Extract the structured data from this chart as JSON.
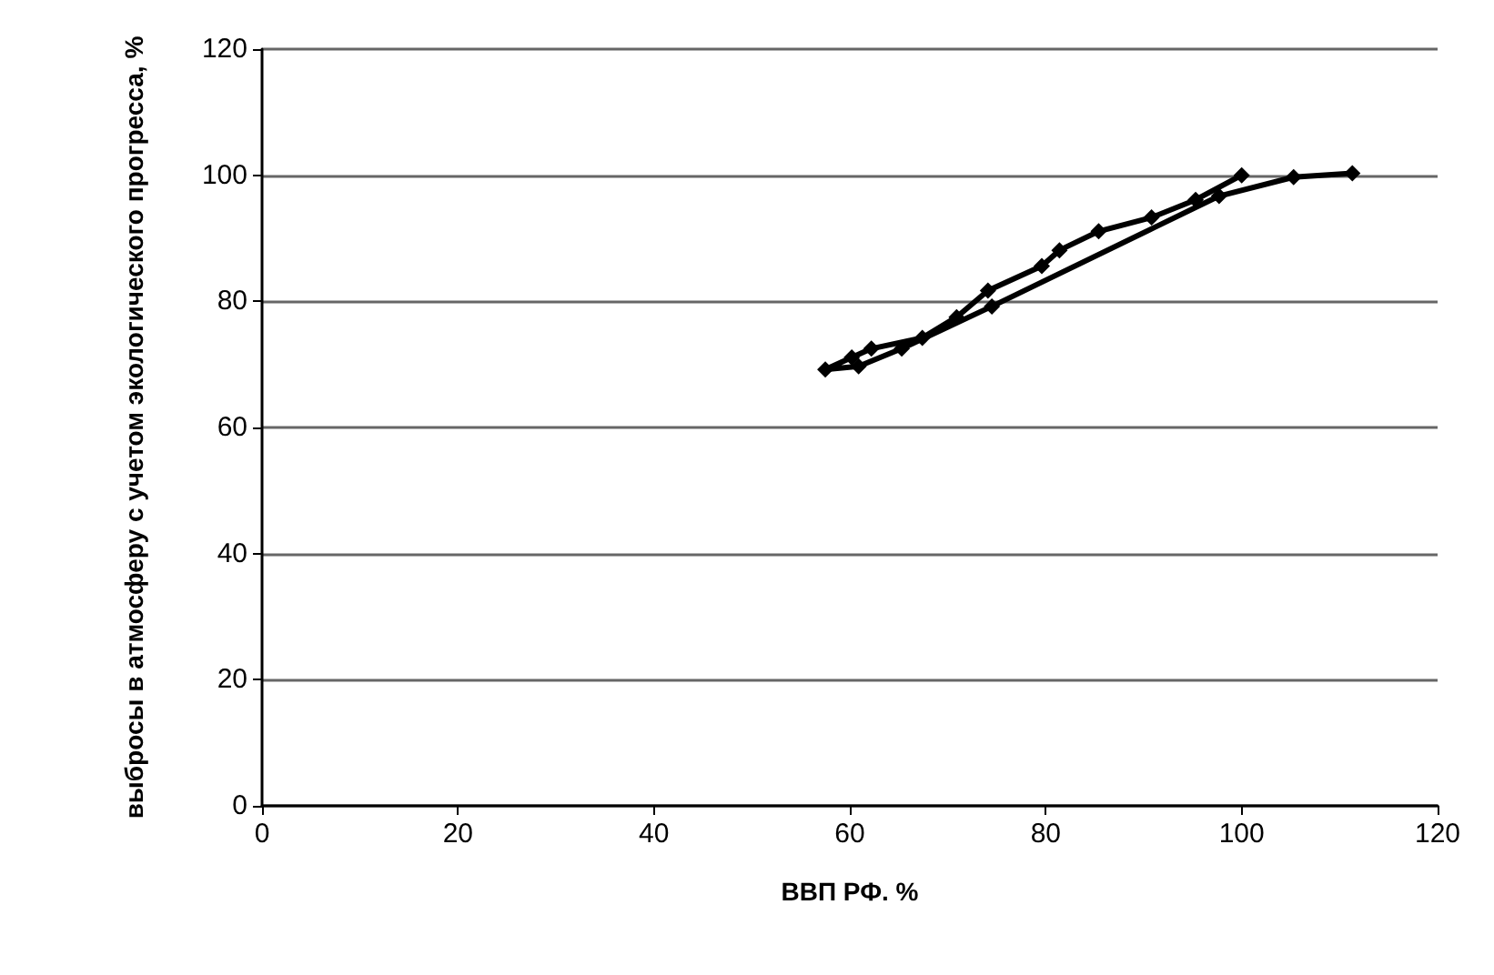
{
  "chart_data": {
    "type": "line",
    "xlabel": "ВВП РФ. %",
    "ylabel": "выбросы в атмосферу с учетом экологического прогресса, %",
    "x": [
      100,
      95.3,
      90.8,
      85.4,
      81.4,
      79.6,
      74.1,
      70.9,
      67.4,
      62.2,
      60.2,
      57.5,
      60.9,
      65.3,
      74.5,
      97.7,
      105.3,
      111.3
    ],
    "series": [
      {
        "color": "#000000",
        "values": [
          100,
          96.1,
          93.3,
          91.1,
          88.1,
          85.6,
          81.7,
          77.5,
          74.2,
          72.5,
          71.1,
          69.2,
          69.7,
          72.5,
          79.2,
          96.7,
          99.7,
          100.3
        ]
      }
    ],
    "xlim": [
      0,
      120
    ],
    "xticks": [
      0,
      20,
      40,
      60,
      80,
      100,
      120
    ],
    "ylim": [
      0,
      120
    ],
    "yticks": [
      0,
      20,
      40,
      60,
      80,
      100,
      120
    ],
    "grid": "y",
    "marker": "diamond",
    "line_style": "solid"
  }
}
